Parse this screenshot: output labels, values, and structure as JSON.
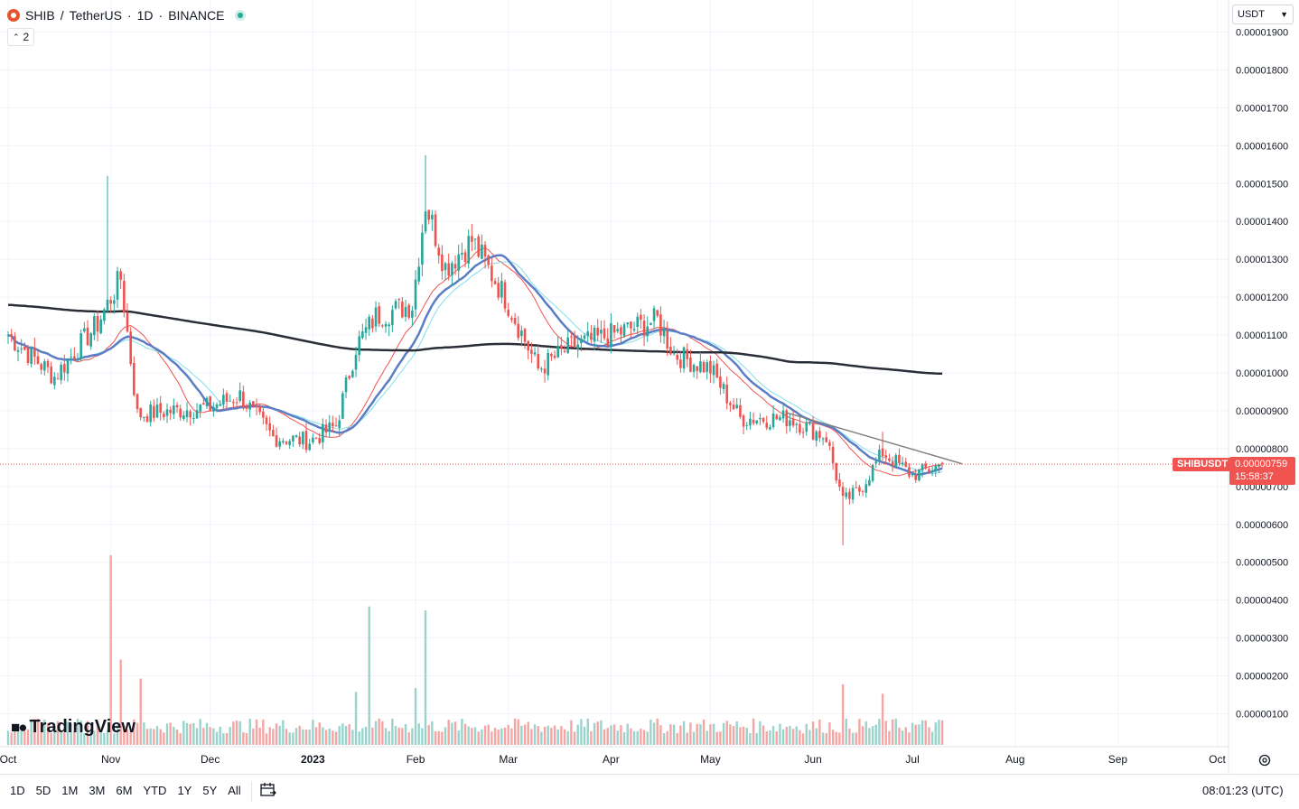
{
  "header": {
    "symbol": "SHIB",
    "separator": "/",
    "pair_name": "TetherUS",
    "interval": "1D",
    "exchange": "BINANCE",
    "dot": "·"
  },
  "indicators_toggle": {
    "count": "2"
  },
  "currency_select": {
    "value": "USDT"
  },
  "price_label": {
    "symbol": "SHIBUSDT",
    "price": "0.00000759",
    "countdown": "15:58:37"
  },
  "logo": {
    "text": "TradingView"
  },
  "range_buttons": [
    "1D",
    "5D",
    "1M",
    "3M",
    "6M",
    "YTD",
    "1Y",
    "5Y",
    "All"
  ],
  "clock": {
    "time": "08:01:23 (UTC)"
  },
  "colors": {
    "up": "#26a69a",
    "down": "#ef5350",
    "vol_up": "#9ad3cc",
    "vol_down": "#f5a6a4",
    "ma_fast": "#f05350",
    "ma_mid": "#5b7dc6",
    "ma_cyan": "#80deea",
    "ma_slow": "#2a2e39",
    "trendline": "#808080"
  },
  "chart_data": {
    "type": "candlestick",
    "title": "SHIB / TetherUS · 1D · BINANCE",
    "y_tick_labels": [
      "0.00000100",
      "0.00000200",
      "0.00000300",
      "0.00000400",
      "0.00000500",
      "0.00000600",
      "0.00000700",
      "0.00000800",
      "0.00000900",
      "0.00001000",
      "0.00001100",
      "0.00001200",
      "0.00001300",
      "0.00001400",
      "0.00001500",
      "0.00001600",
      "0.00001700",
      "0.00001800",
      "0.00001900"
    ],
    "x_tick_labels": [
      "Oct",
      "Nov",
      "Dec",
      "2023",
      "Feb",
      "Mar",
      "Apr",
      "May",
      "Jun",
      "Jul",
      "Aug",
      "Sep",
      "Oct"
    ],
    "ylim": [
      1e-06,
      1.9e-05
    ],
    "last_price": 7.59e-06,
    "keypoints": [
      {
        "date": "2022-10-01",
        "close": 1.1e-05
      },
      {
        "date": "2022-10-15",
        "close": 9.9e-06
      },
      {
        "date": "2022-10-28",
        "close": 1.13e-05
      },
      {
        "date": "2022-11-04",
        "close": 1.25e-05
      },
      {
        "date": "2022-11-09",
        "close": 8.9e-06
      },
      {
        "date": "2022-11-20",
        "close": 9e-06
      },
      {
        "date": "2022-12-01",
        "close": 9.1e-06
      },
      {
        "date": "2022-12-10",
        "close": 9.4e-06
      },
      {
        "date": "2022-12-20",
        "close": 8.3e-06
      },
      {
        "date": "2022-12-31",
        "close": 8.2e-06
      },
      {
        "date": "2023-01-08",
        "close": 8.6e-06
      },
      {
        "date": "2023-01-14",
        "close": 1.07e-05
      },
      {
        "date": "2023-01-20",
        "close": 1.15e-05
      },
      {
        "date": "2023-01-31",
        "close": 1.18e-05
      },
      {
        "date": "2023-02-04",
        "close": 1.45e-05
      },
      {
        "date": "2023-02-10",
        "close": 1.28e-05
      },
      {
        "date": "2023-02-18",
        "close": 1.35e-05
      },
      {
        "date": "2023-02-28",
        "close": 1.2e-05
      },
      {
        "date": "2023-03-10",
        "close": 1.01e-05
      },
      {
        "date": "2023-03-20",
        "close": 1.07e-05
      },
      {
        "date": "2023-04-01",
        "close": 1.1e-05
      },
      {
        "date": "2023-04-15",
        "close": 1.14e-05
      },
      {
        "date": "2023-04-20",
        "close": 1.05e-05
      },
      {
        "date": "2023-05-01",
        "close": 1.01e-05
      },
      {
        "date": "2023-05-10",
        "close": 8.8e-06
      },
      {
        "date": "2023-05-25",
        "close": 8.8e-06
      },
      {
        "date": "2023-06-05",
        "close": 8.3e-06
      },
      {
        "date": "2023-06-10",
        "close": 6.6e-06
      },
      {
        "date": "2023-06-15",
        "close": 6.9e-06
      },
      {
        "date": "2023-06-22",
        "close": 7.9e-06
      },
      {
        "date": "2023-07-01",
        "close": 7.3e-06
      },
      {
        "date": "2023-07-10",
        "close": 7.59e-06
      }
    ],
    "volume_peaks": [
      {
        "date": "2022-11-01",
        "volume": "high"
      },
      {
        "date": "2023-01-18",
        "volume": "high"
      },
      {
        "date": "2023-02-04",
        "volume": "high"
      },
      {
        "date": "2023-06-10",
        "volume": "medium"
      },
      {
        "date": "2023-06-22",
        "volume": "medium"
      }
    ],
    "moving_averages": [
      "20",
      "50",
      "50-cyan",
      "200"
    ],
    "grid": true,
    "legend": "none"
  }
}
